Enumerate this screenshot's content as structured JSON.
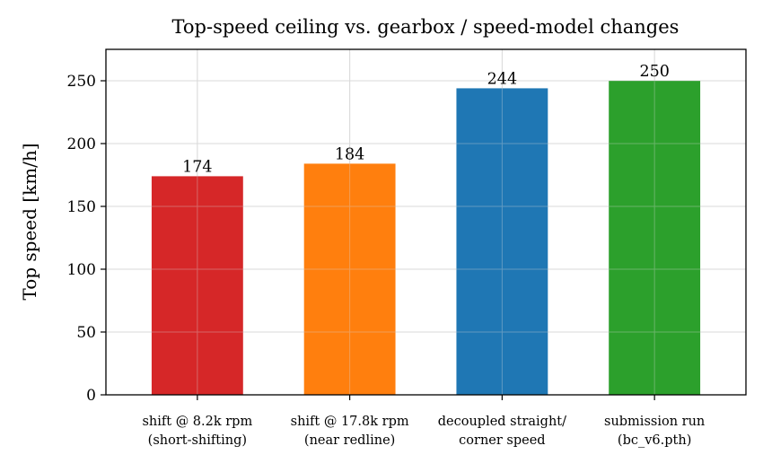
{
  "chart_data": {
    "type": "bar",
    "title": "Top-speed ceiling vs. gearbox / speed-model changes",
    "xlabel": "",
    "ylabel": "Top speed [km/h]",
    "ylim": [
      0,
      275
    ],
    "yticks": [
      0,
      50,
      100,
      150,
      200,
      250
    ],
    "grid": true,
    "categories": [
      [
        "shift @ 8.2k rpm",
        "(short-shifting)"
      ],
      [
        "shift @ 17.8k rpm",
        "(near redline)"
      ],
      [
        "decoupled straight/",
        "corner speed"
      ],
      [
        "submission run",
        "(bc_v6.pth)"
      ]
    ],
    "values": [
      174,
      184,
      244,
      250
    ],
    "data_labels": [
      "174",
      "184",
      "244",
      "250"
    ],
    "colors": [
      "#d62728",
      "#ff7f0e",
      "#1f77b4",
      "#2ca02c"
    ]
  }
}
